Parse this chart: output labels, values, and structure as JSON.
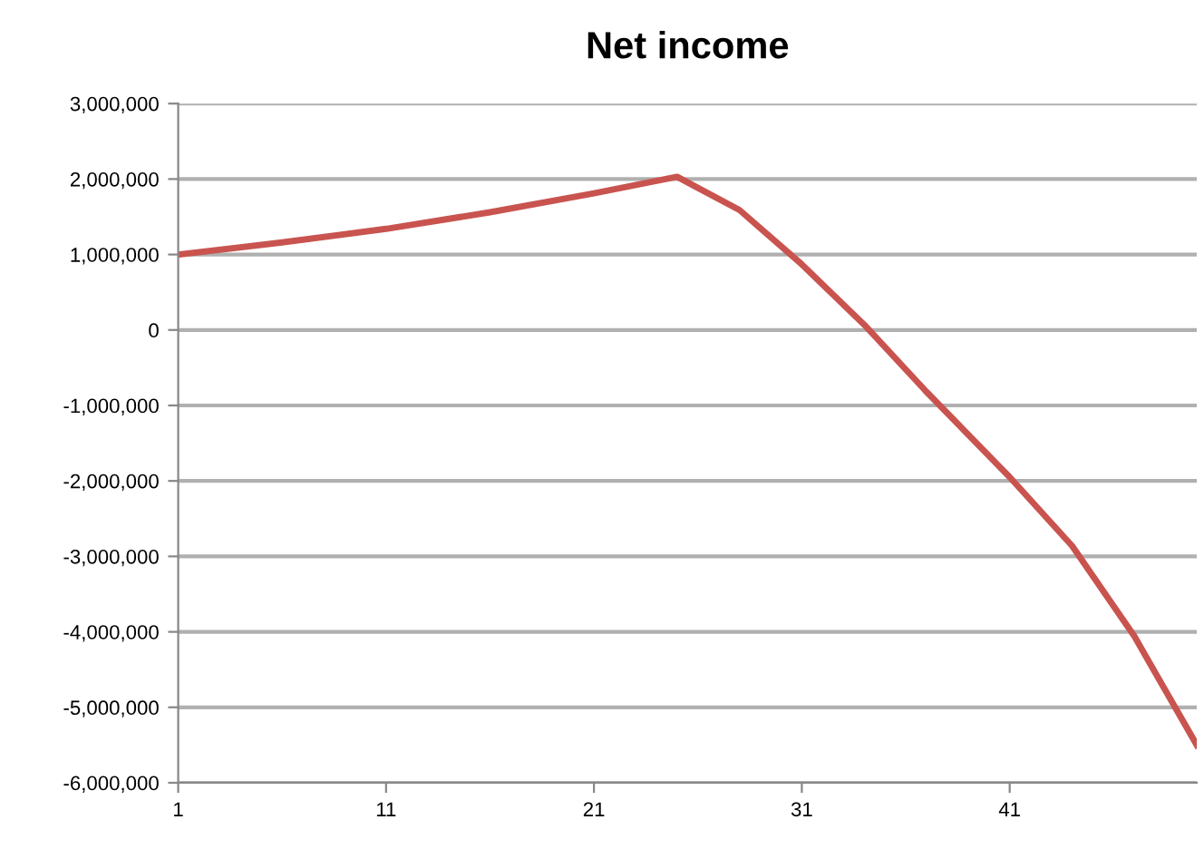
{
  "chart_data": {
    "type": "line",
    "title": "Net income",
    "x": [
      1,
      6,
      11,
      16,
      21,
      25,
      28,
      31,
      34,
      37,
      41,
      44,
      47,
      50
    ],
    "series": [
      {
        "color": "#c9544f",
        "values": [
          1000000,
          1160000,
          1340000,
          1560000,
          1810000,
          2030000,
          1590000,
          870000,
          70000,
          -820000,
          -1950000,
          -2860000,
          -4060000,
          -5500000
        ]
      }
    ],
    "xlim": [
      1,
      50
    ],
    "xticks": [
      1,
      11,
      21,
      31,
      41
    ],
    "ylim": [
      -6000000,
      3000000
    ],
    "yticks": [
      {
        "value": -6000000,
        "label": "-6,000,000"
      },
      {
        "value": -5000000,
        "label": "-5,000,000"
      },
      {
        "value": -4000000,
        "label": "-4,000,000"
      },
      {
        "value": -3000000,
        "label": "-3,000,000"
      },
      {
        "value": -2000000,
        "label": "-2,000,000"
      },
      {
        "value": -1000000,
        "label": "-1,000,000"
      },
      {
        "value": 0,
        "label": "0"
      },
      {
        "value": 1000000,
        "label": "1,000,000"
      },
      {
        "value": 2000000,
        "label": "2,000,000"
      },
      {
        "value": 3000000,
        "label": "3,000,000"
      }
    ],
    "grid": "y",
    "marker": "none",
    "line_style": "solid"
  }
}
